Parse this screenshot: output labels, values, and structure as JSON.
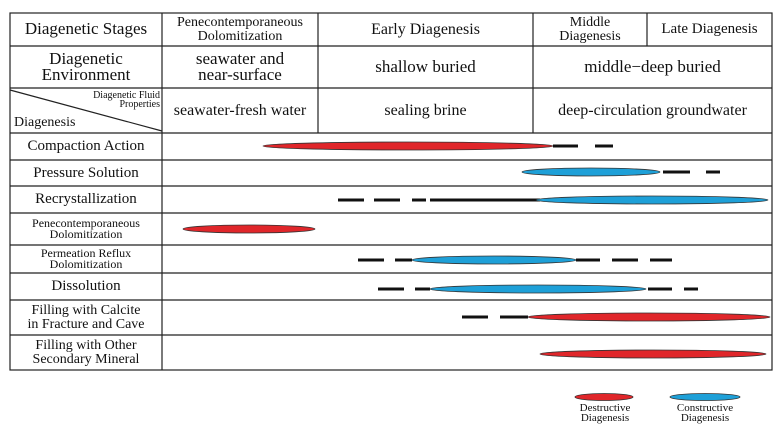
{
  "header": {
    "stage_label": "Diagenetic Stages",
    "stages": [
      "Penecontemporaneous\nDolomitization",
      "Early Diagenesis",
      "Middle\nDiagenesis",
      "Late Diagenesis"
    ]
  },
  "environment": {
    "label": "Diagenetic\nEnvironment",
    "values": [
      "seawater and\nnear-surface",
      "shallow buried",
      "middle−deep buried"
    ]
  },
  "fluid": {
    "label_top": "Diagenetic Fluid\nProperties",
    "label_bottom": "Diagenesis",
    "values": [
      "seawater-fresh water",
      "sealing brine",
      "deep-circulation groundwater"
    ]
  },
  "processes": [
    "Compaction Action",
    "Pressure Solution",
    "Recrystallization",
    "Penecontemporaneous\nDolomitization",
    "Permeation Reflux\nDolomitization",
    "Dissolution",
    "Filling with Calcite\nin Fracture and Cave",
    "Filling with Other\nSecondary Mineral"
  ],
  "legend": [
    "Destructive\nDiagenesis",
    "Constructive\nDiagenesis"
  ]
}
